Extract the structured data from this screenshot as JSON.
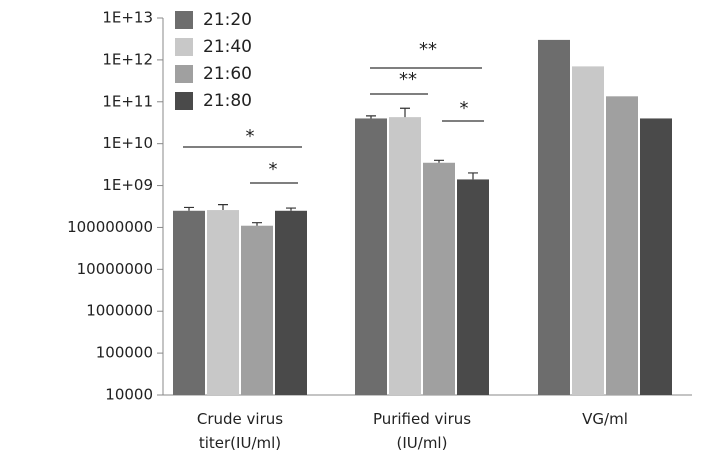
{
  "chart_data": {
    "type": "bar",
    "log_scale": true,
    "categories": [
      "Crude virus\ntiter(IU/ml)",
      "Purified virus\n(IU/ml)",
      "VG/ml"
    ],
    "series": [
      {
        "name": "21:20",
        "color": "#6d6d6d",
        "values": [
          250000000,
          40000000000,
          3000000000000
        ],
        "errors": [
          50000000,
          6000000000,
          null
        ]
      },
      {
        "name": "21:40",
        "color": "#c8c8c8",
        "values": [
          260000000,
          43000000000,
          700000000000
        ],
        "errors": [
          90000000,
          27000000000,
          null
        ]
      },
      {
        "name": "21:60",
        "color": "#a0a0a0",
        "values": [
          110000000,
          3500000000,
          135000000000
        ],
        "errors": [
          20000000,
          500000000,
          null
        ]
      },
      {
        "name": "21:80",
        "color": "#4a4a4a",
        "values": [
          250000000,
          1400000000,
          40000000000
        ],
        "errors": [
          40000000,
          600000000,
          null
        ]
      }
    ],
    "ylim": [
      10000,
      10000000000000
    ],
    "yticks": [
      10000,
      100000,
      1000000,
      10000000,
      100000000,
      {
        "value": 1000000000,
        "label": "1E+09"
      },
      {
        "value": 10000000000,
        "label": "1E+10"
      },
      {
        "value": 100000000000,
        "label": "1E+11"
      },
      {
        "value": 1000000000000,
        "label": "1E+12"
      },
      {
        "value": 10000000000000,
        "label": "1E+13"
      }
    ],
    "annotations": [
      {
        "label": "*"
      },
      {
        "label": "*"
      },
      {
        "label": "**"
      },
      {
        "label": "**"
      },
      {
        "label": "*"
      }
    ],
    "legend": "upper left"
  }
}
